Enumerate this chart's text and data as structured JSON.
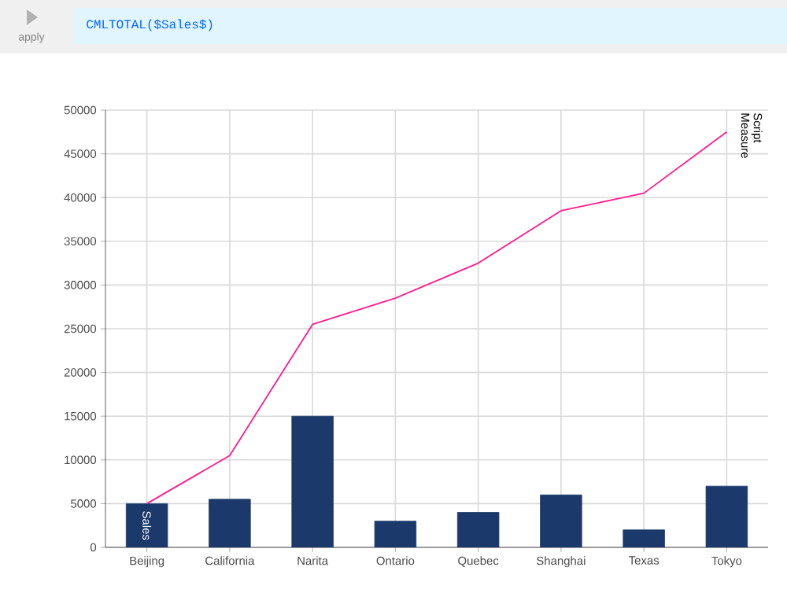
{
  "chart_data": {
    "type": "bar",
    "categories": [
      "Beijing",
      "California",
      "Narita",
      "Ontario",
      "Quebec",
      "Shanghai",
      "Texas",
      "Tokyo"
    ],
    "series": [
      {
        "name": "Sales",
        "type": "bar",
        "color": "#1b3a6b",
        "values": [
          5000,
          5500,
          15000,
          3000,
          4000,
          6000,
          2000,
          7000
        ]
      },
      {
        "name": "Script Measure",
        "type": "line",
        "color": "#ff1a8c",
        "values": [
          5000,
          10500,
          25500,
          28500,
          32500,
          38500,
          40500,
          47500
        ]
      }
    ],
    "ylim": [
      0,
      50000
    ],
    "yticks": [
      0,
      5000,
      10000,
      15000,
      20000,
      25000,
      30000,
      35000,
      40000,
      45000,
      50000
    ],
    "grid": true,
    "annotations": [
      "apply",
      "CMLTOTAL($Sales$)"
    ]
  }
}
